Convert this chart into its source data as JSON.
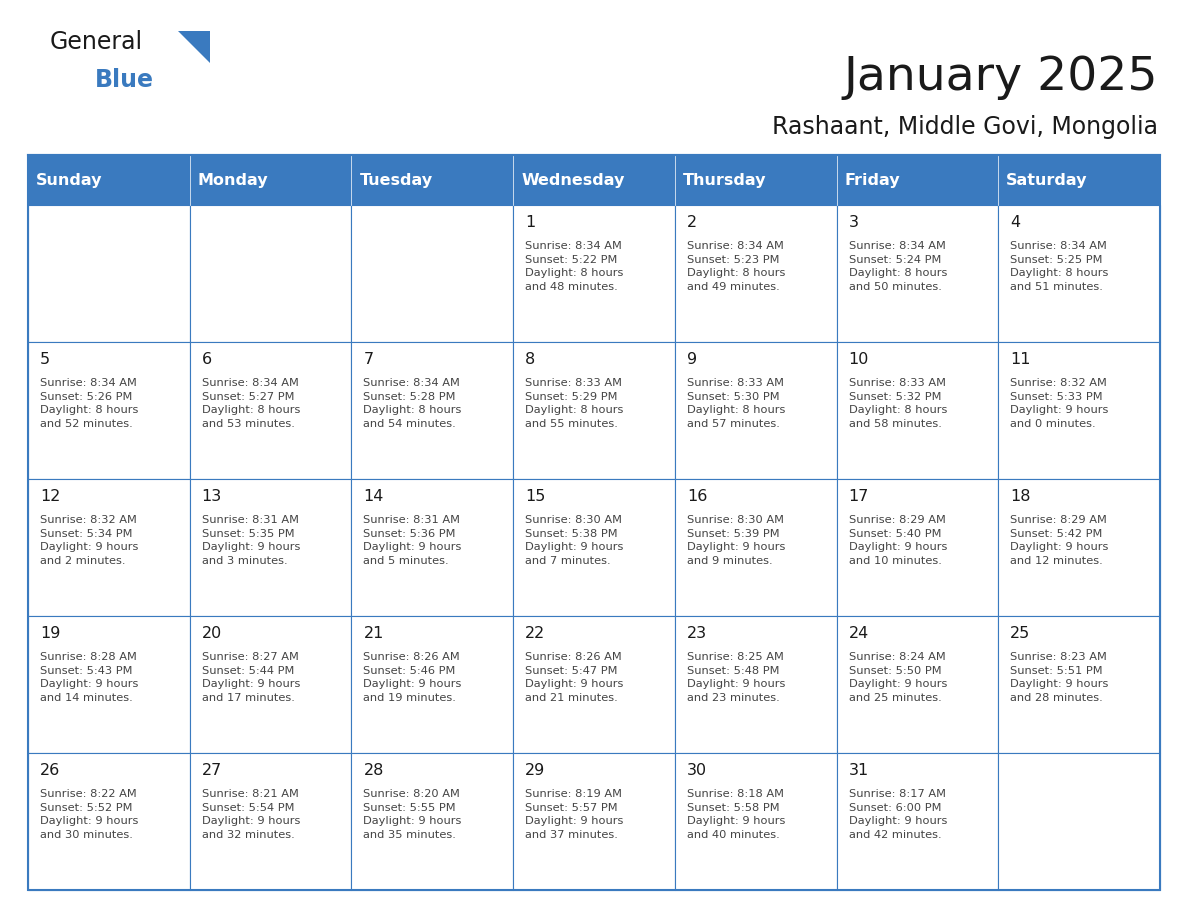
{
  "title": "January 2025",
  "subtitle": "Rashaant, Middle Govi, Mongolia",
  "days_of_week": [
    "Sunday",
    "Monday",
    "Tuesday",
    "Wednesday",
    "Thursday",
    "Friday",
    "Saturday"
  ],
  "header_bg": "#3a7abf",
  "header_text": "#ffffff",
  "border_color": "#3a7abf",
  "text_color": "#444444",
  "title_color": "#1a1a1a",
  "logo_general_color": "#1a1a1a",
  "logo_blue_color": "#3a7abf",
  "logo_triangle_color": "#3a7abf",
  "calendar_data": [
    [
      {
        "day": null,
        "sunrise": null,
        "sunset": null,
        "daylight": null
      },
      {
        "day": null,
        "sunrise": null,
        "sunset": null,
        "daylight": null
      },
      {
        "day": null,
        "sunrise": null,
        "sunset": null,
        "daylight": null
      },
      {
        "day": 1,
        "sunrise": "8:34 AM",
        "sunset": "5:22 PM",
        "daylight": "8 hours\nand 48 minutes."
      },
      {
        "day": 2,
        "sunrise": "8:34 AM",
        "sunset": "5:23 PM",
        "daylight": "8 hours\nand 49 minutes."
      },
      {
        "day": 3,
        "sunrise": "8:34 AM",
        "sunset": "5:24 PM",
        "daylight": "8 hours\nand 50 minutes."
      },
      {
        "day": 4,
        "sunrise": "8:34 AM",
        "sunset": "5:25 PM",
        "daylight": "8 hours\nand 51 minutes."
      }
    ],
    [
      {
        "day": 5,
        "sunrise": "8:34 AM",
        "sunset": "5:26 PM",
        "daylight": "8 hours\nand 52 minutes."
      },
      {
        "day": 6,
        "sunrise": "8:34 AM",
        "sunset": "5:27 PM",
        "daylight": "8 hours\nand 53 minutes."
      },
      {
        "day": 7,
        "sunrise": "8:34 AM",
        "sunset": "5:28 PM",
        "daylight": "8 hours\nand 54 minutes."
      },
      {
        "day": 8,
        "sunrise": "8:33 AM",
        "sunset": "5:29 PM",
        "daylight": "8 hours\nand 55 minutes."
      },
      {
        "day": 9,
        "sunrise": "8:33 AM",
        "sunset": "5:30 PM",
        "daylight": "8 hours\nand 57 minutes."
      },
      {
        "day": 10,
        "sunrise": "8:33 AM",
        "sunset": "5:32 PM",
        "daylight": "8 hours\nand 58 minutes."
      },
      {
        "day": 11,
        "sunrise": "8:32 AM",
        "sunset": "5:33 PM",
        "daylight": "9 hours\nand 0 minutes."
      }
    ],
    [
      {
        "day": 12,
        "sunrise": "8:32 AM",
        "sunset": "5:34 PM",
        "daylight": "9 hours\nand 2 minutes."
      },
      {
        "day": 13,
        "sunrise": "8:31 AM",
        "sunset": "5:35 PM",
        "daylight": "9 hours\nand 3 minutes."
      },
      {
        "day": 14,
        "sunrise": "8:31 AM",
        "sunset": "5:36 PM",
        "daylight": "9 hours\nand 5 minutes."
      },
      {
        "day": 15,
        "sunrise": "8:30 AM",
        "sunset": "5:38 PM",
        "daylight": "9 hours\nand 7 minutes."
      },
      {
        "day": 16,
        "sunrise": "8:30 AM",
        "sunset": "5:39 PM",
        "daylight": "9 hours\nand 9 minutes."
      },
      {
        "day": 17,
        "sunrise": "8:29 AM",
        "sunset": "5:40 PM",
        "daylight": "9 hours\nand 10 minutes."
      },
      {
        "day": 18,
        "sunrise": "8:29 AM",
        "sunset": "5:42 PM",
        "daylight": "9 hours\nand 12 minutes."
      }
    ],
    [
      {
        "day": 19,
        "sunrise": "8:28 AM",
        "sunset": "5:43 PM",
        "daylight": "9 hours\nand 14 minutes."
      },
      {
        "day": 20,
        "sunrise": "8:27 AM",
        "sunset": "5:44 PM",
        "daylight": "9 hours\nand 17 minutes."
      },
      {
        "day": 21,
        "sunrise": "8:26 AM",
        "sunset": "5:46 PM",
        "daylight": "9 hours\nand 19 minutes."
      },
      {
        "day": 22,
        "sunrise": "8:26 AM",
        "sunset": "5:47 PM",
        "daylight": "9 hours\nand 21 minutes."
      },
      {
        "day": 23,
        "sunrise": "8:25 AM",
        "sunset": "5:48 PM",
        "daylight": "9 hours\nand 23 minutes."
      },
      {
        "day": 24,
        "sunrise": "8:24 AM",
        "sunset": "5:50 PM",
        "daylight": "9 hours\nand 25 minutes."
      },
      {
        "day": 25,
        "sunrise": "8:23 AM",
        "sunset": "5:51 PM",
        "daylight": "9 hours\nand 28 minutes."
      }
    ],
    [
      {
        "day": 26,
        "sunrise": "8:22 AM",
        "sunset": "5:52 PM",
        "daylight": "9 hours\nand 30 minutes."
      },
      {
        "day": 27,
        "sunrise": "8:21 AM",
        "sunset": "5:54 PM",
        "daylight": "9 hours\nand 32 minutes."
      },
      {
        "day": 28,
        "sunrise": "8:20 AM",
        "sunset": "5:55 PM",
        "daylight": "9 hours\nand 35 minutes."
      },
      {
        "day": 29,
        "sunrise": "8:19 AM",
        "sunset": "5:57 PM",
        "daylight": "9 hours\nand 37 minutes."
      },
      {
        "day": 30,
        "sunrise": "8:18 AM",
        "sunset": "5:58 PM",
        "daylight": "9 hours\nand 40 minutes."
      },
      {
        "day": 31,
        "sunrise": "8:17 AM",
        "sunset": "6:00 PM",
        "daylight": "9 hours\nand 42 minutes."
      },
      {
        "day": null,
        "sunrise": null,
        "sunset": null,
        "daylight": null
      }
    ]
  ],
  "figsize": [
    11.88,
    9.18
  ],
  "dpi": 100
}
